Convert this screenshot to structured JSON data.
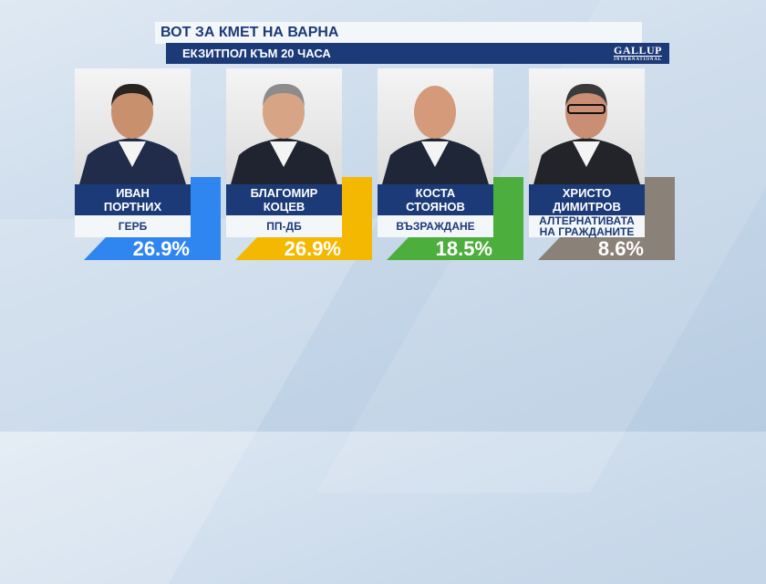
{
  "header": {
    "title": "ВОТ ЗА КМЕТ НА ВАРНА",
    "subtitle": "ЕКЗИТПОЛ КЪМ 20 ЧАСА",
    "logo_line1": "GALLUP",
    "logo_line2": "INTERNATIONAL"
  },
  "chart_data": {
    "type": "table",
    "title": "ВОТ ЗА КМЕТ НА ВАРНА",
    "subtitle": "ЕКЗИТПОЛ КЪМ 20 ЧАСА",
    "rows": [
      {
        "name": "ИВАН\nПОРТНИХ",
        "party": "ГЕРБ",
        "value": 26.9,
        "label": "26.9%",
        "color": "#2f86f0"
      },
      {
        "name": "БЛАГОМИР\nКОЦЕВ",
        "party": "ПП-ДБ",
        "value": 26.9,
        "label": "26.9%",
        "color": "#f5b800"
      },
      {
        "name": "КОСТА\nСТОЯНОВ",
        "party": "ВЪЗРАЖДАНЕ",
        "value": 18.5,
        "label": "18.5%",
        "color": "#4cae3c"
      },
      {
        "name": "ХРИСТО\nДИМИТРОВ",
        "party": "АЛТЕРНАТИВАТА\nНА ГРАЖДАНИТЕ",
        "value": 8.6,
        "label": "8.6%",
        "color": "#8a8178"
      }
    ]
  }
}
